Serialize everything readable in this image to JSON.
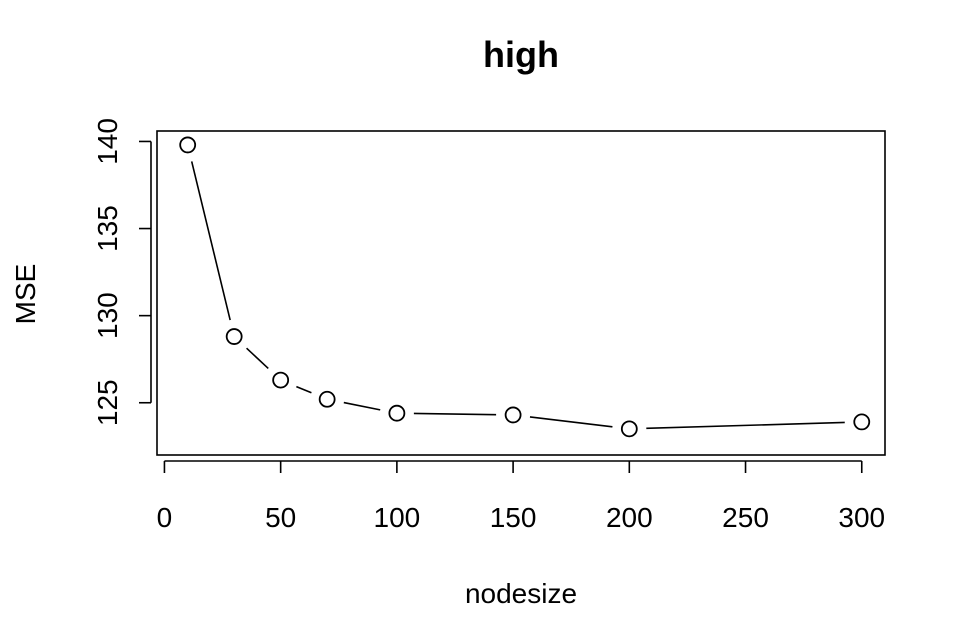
{
  "chart_data": {
    "type": "line",
    "title": "high",
    "xlabel": "nodesize",
    "ylabel": "MSE",
    "x": [
      10,
      30,
      50,
      70,
      100,
      150,
      200,
      300
    ],
    "series": [
      {
        "values": [
          139.8,
          128.8,
          126.3,
          125.2,
          124.4,
          124.3,
          123.5,
          123.9
        ]
      }
    ],
    "xticks": [
      "0",
      "50",
      "100",
      "150",
      "200",
      "250",
      "300"
    ],
    "yticks": [
      "125",
      "130",
      "135",
      "140"
    ],
    "xlim": [
      -3.2,
      310
    ],
    "ylim": [
      122.0,
      140.6
    ],
    "markers": "open-circle",
    "line_style": "segments between markers (type b)",
    "grid": false,
    "legend": "none"
  }
}
